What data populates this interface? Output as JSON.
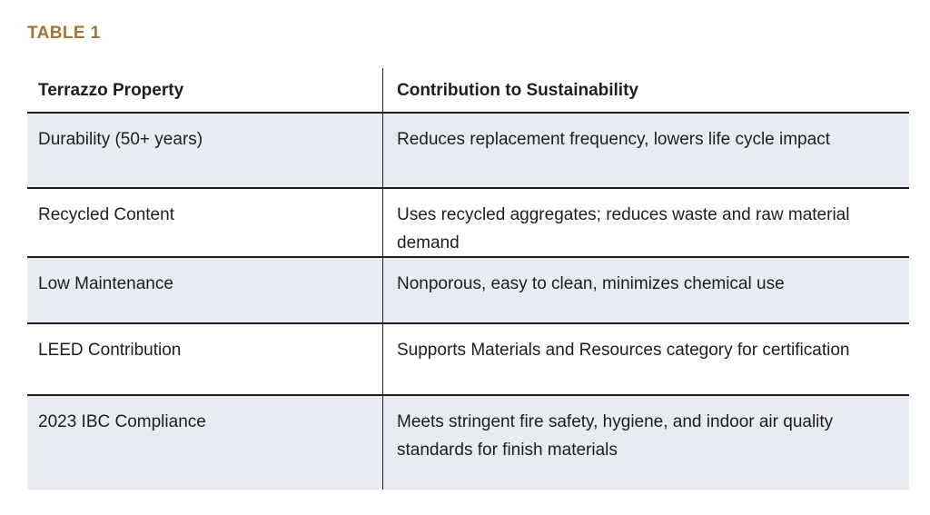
{
  "title": "TABLE 1",
  "table": {
    "headers": {
      "col1": "Terrazzo Property",
      "col2": "Contribution to Sustainability"
    },
    "rows": [
      {
        "property": "Durability (50+ years)",
        "contribution": "Reduces replacement frequency, lowers life cycle impact"
      },
      {
        "property": "Recycled Content",
        "contribution": "Uses recycled aggregates; reduces waste and raw material demand"
      },
      {
        "property": "Low Maintenance",
        "contribution": "Nonporous, easy to clean, minimizes chemical use"
      },
      {
        "property": "LEED Contribution",
        "contribution": "Supports Materials and Resources category for certification"
      },
      {
        "property": "2023 IBC Compliance",
        "contribution": "Meets stringent fire safety, hygiene, and indoor air quality standards for finish materials"
      }
    ]
  },
  "colors": {
    "title_gold": "#9A773B",
    "row_shade": "#E8EBF2",
    "border": "#1C1C1C",
    "text": "#1E1E1E",
    "background": "#FFFFFF"
  }
}
